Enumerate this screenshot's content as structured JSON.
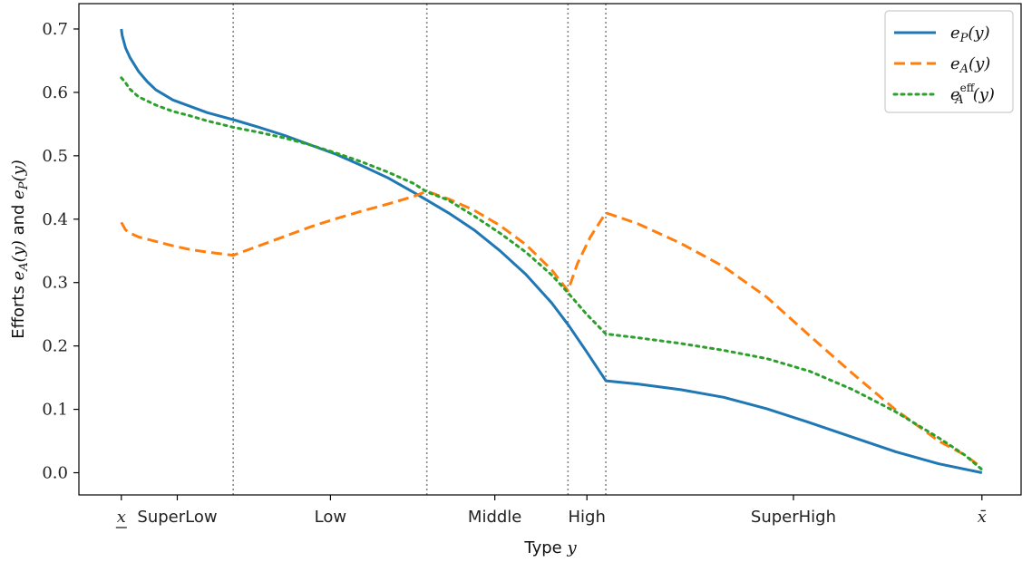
{
  "chart_data": {
    "type": "line",
    "x_domain": [
      0,
      100
    ],
    "ylim": [
      -0.035,
      0.74
    ],
    "y_ticks": [
      "0.0",
      "0.1",
      "0.2",
      "0.3",
      "0.4",
      "0.5",
      "0.6",
      "0.7"
    ],
    "y_tick_values": [
      0.0,
      0.1,
      0.2,
      0.3,
      0.4,
      0.5,
      0.6,
      0.7
    ],
    "xlabel": {
      "prefix": "Type ",
      "var": "y"
    },
    "ylabel": {
      "prefix": "Efforts ",
      "e_a": "e",
      "sub_a": "A",
      "arg_a": "(y)",
      "and": " and ",
      "e_p": "e",
      "sub_p": "P",
      "arg_p": "(y)"
    },
    "x_tick_labels": [
      {
        "name": "x-underline",
        "text": "x",
        "x": 0,
        "style": "math-underline"
      },
      {
        "name": "superlow",
        "text": "SuperLow",
        "x": 6.5
      },
      {
        "name": "low",
        "text": "Low",
        "x": 24.3
      },
      {
        "name": "middle",
        "text": "Middle",
        "x": 43.4
      },
      {
        "name": "high",
        "text": "High",
        "x": 54.1
      },
      {
        "name": "superhigh",
        "text": "SuperHigh",
        "x": 78.1
      },
      {
        "name": "x-bar",
        "text": "x̄",
        "x": 100,
        "style": "math"
      }
    ],
    "boundaries": [
      13.0,
      35.5,
      51.9,
      56.3
    ],
    "colors": {
      "e_P": "#1f77b4",
      "e_A": "#ff7f0e",
      "e_A_eff": "#2ca02c",
      "boundary": "#888888"
    },
    "legend": {
      "position": "top-right",
      "entries": [
        {
          "key": "e_P",
          "label": "e",
          "sub": "P",
          "sup": "",
          "arg": "(y)",
          "dash": "solid"
        },
        {
          "key": "e_A",
          "label": "e",
          "sub": "A",
          "sup": "",
          "arg": "(y)",
          "dash": "dashed"
        },
        {
          "key": "e_A_eff",
          "label": "e",
          "sub": "A",
          "sup": "eff",
          "arg": "(y)",
          "dash": "dotted"
        }
      ]
    },
    "series": [
      {
        "key": "e_P",
        "points": [
          [
            0,
            0.7
          ],
          [
            0.1,
            0.69
          ],
          [
            0.5,
            0.67
          ],
          [
            1,
            0.655
          ],
          [
            2,
            0.633
          ],
          [
            3,
            0.617
          ],
          [
            4,
            0.604
          ],
          [
            6,
            0.588
          ],
          [
            8,
            0.578
          ],
          [
            10,
            0.568
          ],
          [
            13,
            0.557
          ],
          [
            16,
            0.545
          ],
          [
            19,
            0.532
          ],
          [
            22,
            0.517
          ],
          [
            25,
            0.502
          ],
          [
            28,
            0.484
          ],
          [
            31,
            0.465
          ],
          [
            34,
            0.442
          ],
          [
            35.5,
            0.43
          ],
          [
            38,
            0.41
          ],
          [
            41,
            0.383
          ],
          [
            44,
            0.35
          ],
          [
            47,
            0.313
          ],
          [
            50,
            0.268
          ],
          [
            52,
            0.232
          ],
          [
            54,
            0.192
          ],
          [
            56.3,
            0.145
          ],
          [
            60,
            0.14
          ],
          [
            65,
            0.131
          ],
          [
            70,
            0.119
          ],
          [
            75,
            0.101
          ],
          [
            80,
            0.079
          ],
          [
            85,
            0.056
          ],
          [
            90,
            0.033
          ],
          [
            95,
            0.014
          ],
          [
            100,
            0.0
          ]
        ]
      },
      {
        "key": "e_A",
        "points": [
          [
            0,
            0.395
          ],
          [
            0.5,
            0.383
          ],
          [
            1,
            0.378
          ],
          [
            2,
            0.372
          ],
          [
            4,
            0.365
          ],
          [
            6,
            0.358
          ],
          [
            8,
            0.352
          ],
          [
            10,
            0.348
          ],
          [
            13,
            0.343
          ],
          [
            16,
            0.358
          ],
          [
            19,
            0.373
          ],
          [
            22,
            0.388
          ],
          [
            25,
            0.401
          ],
          [
            28,
            0.413
          ],
          [
            31,
            0.424
          ],
          [
            34,
            0.436
          ],
          [
            35.5,
            0.444
          ],
          [
            38,
            0.432
          ],
          [
            41,
            0.414
          ],
          [
            44,
            0.39
          ],
          [
            47,
            0.36
          ],
          [
            50,
            0.32
          ],
          [
            51.9,
            0.287
          ],
          [
            53,
            0.33
          ],
          [
            54.5,
            0.372
          ],
          [
            56.3,
            0.41
          ],
          [
            60,
            0.393
          ],
          [
            65,
            0.362
          ],
          [
            70,
            0.325
          ],
          [
            75,
            0.277
          ],
          [
            80,
            0.216
          ],
          [
            85,
            0.156
          ],
          [
            90,
            0.099
          ],
          [
            95,
            0.05
          ],
          [
            98,
            0.028
          ],
          [
            100,
            0.008
          ]
        ]
      },
      {
        "key": "e_A_eff",
        "points": [
          [
            0,
            0.623
          ],
          [
            0.5,
            0.615
          ],
          [
            1,
            0.605
          ],
          [
            2,
            0.593
          ],
          [
            4,
            0.58
          ],
          [
            6,
            0.57
          ],
          [
            8,
            0.563
          ],
          [
            10,
            0.555
          ],
          [
            13,
            0.545
          ],
          [
            16,
            0.537
          ],
          [
            19,
            0.528
          ],
          [
            22,
            0.517
          ],
          [
            25,
            0.504
          ],
          [
            28,
            0.49
          ],
          [
            31,
            0.474
          ],
          [
            34,
            0.456
          ],
          [
            35.5,
            0.443
          ],
          [
            38,
            0.43
          ],
          [
            41,
            0.405
          ],
          [
            44,
            0.378
          ],
          [
            47,
            0.348
          ],
          [
            50,
            0.312
          ],
          [
            51.9,
            0.284
          ],
          [
            54,
            0.251
          ],
          [
            56.3,
            0.219
          ],
          [
            60,
            0.213
          ],
          [
            65,
            0.204
          ],
          [
            70,
            0.193
          ],
          [
            75,
            0.18
          ],
          [
            80,
            0.16
          ],
          [
            85,
            0.131
          ],
          [
            90,
            0.096
          ],
          [
            95,
            0.055
          ],
          [
            98,
            0.028
          ],
          [
            100,
            0.005
          ]
        ]
      }
    ]
  }
}
